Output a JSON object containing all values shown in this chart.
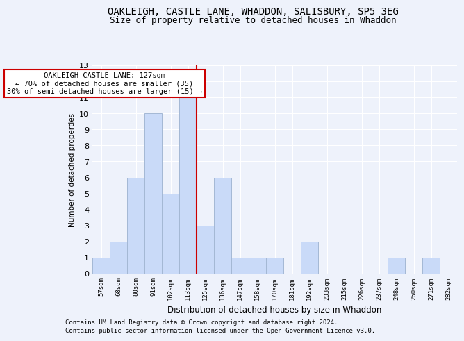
{
  "title1": "OAKLEIGH, CASTLE LANE, WHADDON, SALISBURY, SP5 3EG",
  "title2": "Size of property relative to detached houses in Whaddon",
  "xlabel": "Distribution of detached houses by size in Whaddon",
  "ylabel": "Number of detached properties",
  "categories": [
    "57sqm",
    "68sqm",
    "80sqm",
    "91sqm",
    "102sqm",
    "113sqm",
    "125sqm",
    "136sqm",
    "147sqm",
    "158sqm",
    "170sqm",
    "181sqm",
    "192sqm",
    "203sqm",
    "215sqm",
    "226sqm",
    "237sqm",
    "248sqm",
    "260sqm",
    "271sqm",
    "282sqm"
  ],
  "values": [
    1,
    2,
    6,
    10,
    5,
    11,
    3,
    6,
    1,
    1,
    1,
    0,
    2,
    0,
    0,
    0,
    0,
    1,
    0,
    1,
    0
  ],
  "bar_color": "#c9daf8",
  "bar_edge_color": "#a4b8d4",
  "red_line_index": 6,
  "annotation_line1": "OAKLEIGH CASTLE LANE: 127sqm",
  "annotation_line2": "← 70% of detached houses are smaller (35)",
  "annotation_line3": "30% of semi-detached houses are larger (15) →",
  "ylim": [
    0,
    13
  ],
  "yticks": [
    0,
    1,
    2,
    3,
    4,
    5,
    6,
    7,
    8,
    9,
    10,
    11,
    12,
    13
  ],
  "footer1": "Contains HM Land Registry data © Crown copyright and database right 2024.",
  "footer2": "Contains public sector information licensed under the Open Government Licence v3.0.",
  "background_color": "#eef2fb",
  "grid_color": "#ffffff",
  "title_fontsize": 10,
  "subtitle_fontsize": 9,
  "annotation_box_color": "#ffffff",
  "annotation_box_edge": "#cc0000",
  "footer_fontsize": 6.5
}
